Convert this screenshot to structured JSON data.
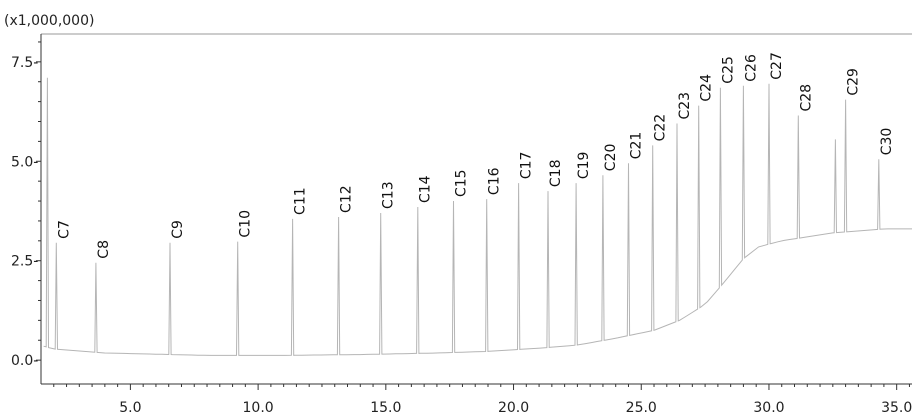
{
  "chart_data": {
    "type": "line",
    "title": "",
    "xlabel": "",
    "ylabel": "",
    "y_multiplier_label": "(x1,000,000)",
    "xlim": [
      1.5,
      35.6
    ],
    "ylim": [
      -0.6,
      8.2
    ],
    "x_ticks": [
      5.0,
      10.0,
      15.0,
      20.0,
      25.0,
      30.0,
      35.0
    ],
    "x_tick_labels": [
      "5.0",
      "10.0",
      "15.0",
      "20.0",
      "25.0",
      "30.0",
      "35.0"
    ],
    "y_ticks": [
      0.0,
      2.5,
      5.0,
      7.5
    ],
    "y_tick_labels": [
      "0.0-",
      "2.5-",
      "5.0-",
      "7.5-"
    ],
    "grid": false,
    "line_color": "#b5b5b5",
    "baseline": [
      [
        1.6,
        0.35
      ],
      [
        2.0,
        0.28
      ],
      [
        4.0,
        0.18
      ],
      [
        8.0,
        0.12
      ],
      [
        11.0,
        0.12
      ],
      [
        14.0,
        0.14
      ],
      [
        17.0,
        0.18
      ],
      [
        19.0,
        0.22
      ],
      [
        21.0,
        0.3
      ],
      [
        22.5,
        0.38
      ],
      [
        24.0,
        0.55
      ],
      [
        25.5,
        0.75
      ],
      [
        26.5,
        1.0
      ],
      [
        27.5,
        1.4
      ],
      [
        28.3,
        2.0
      ],
      [
        29.0,
        2.55
      ],
      [
        29.6,
        2.85
      ],
      [
        30.5,
        3.0
      ],
      [
        31.5,
        3.1
      ],
      [
        32.5,
        3.2
      ],
      [
        33.5,
        3.25
      ],
      [
        34.5,
        3.3
      ],
      [
        35.6,
        3.3
      ]
    ],
    "peaks": [
      {
        "label": "",
        "x": 1.75,
        "y": 7.1
      },
      {
        "label": "C7",
        "x": 2.1,
        "y": 2.95
      },
      {
        "label": "C8",
        "x": 3.65,
        "y": 2.45
      },
      {
        "label": "C9",
        "x": 6.55,
        "y": 2.95
      },
      {
        "label": "C10",
        "x": 9.2,
        "y": 2.98
      },
      {
        "label": "C11",
        "x": 11.35,
        "y": 3.55
      },
      {
        "label": "C12",
        "x": 13.15,
        "y": 3.6
      },
      {
        "label": "C13",
        "x": 14.8,
        "y": 3.7
      },
      {
        "label": "C14",
        "x": 16.25,
        "y": 3.85
      },
      {
        "label": "C15",
        "x": 17.65,
        "y": 4.0
      },
      {
        "label": "C16",
        "x": 18.95,
        "y": 4.05
      },
      {
        "label": "C17",
        "x": 20.2,
        "y": 4.45
      },
      {
        "label": "C18",
        "x": 21.35,
        "y": 4.25
      },
      {
        "label": "C19",
        "x": 22.45,
        "y": 4.45
      },
      {
        "label": "C20",
        "x": 23.5,
        "y": 4.65
      },
      {
        "label": "C21",
        "x": 24.5,
        "y": 4.95
      },
      {
        "label": "C22",
        "x": 25.45,
        "y": 5.4
      },
      {
        "label": "C23",
        "x": 26.4,
        "y": 5.95
      },
      {
        "label": "C24",
        "x": 27.25,
        "y": 6.4
      },
      {
        "label": "C25",
        "x": 28.1,
        "y": 6.85
      },
      {
        "label": "C26",
        "x": 29.0,
        "y": 6.9
      },
      {
        "label": "C27",
        "x": 30.0,
        "y": 6.95
      },
      {
        "label": "C28",
        "x": 31.15,
        "y": 6.15
      },
      {
        "label": "",
        "x": 32.6,
        "y": 5.55
      },
      {
        "label": "C29",
        "x": 33.0,
        "y": 6.55
      },
      {
        "label": "C30",
        "x": 34.3,
        "y": 5.05
      }
    ]
  }
}
